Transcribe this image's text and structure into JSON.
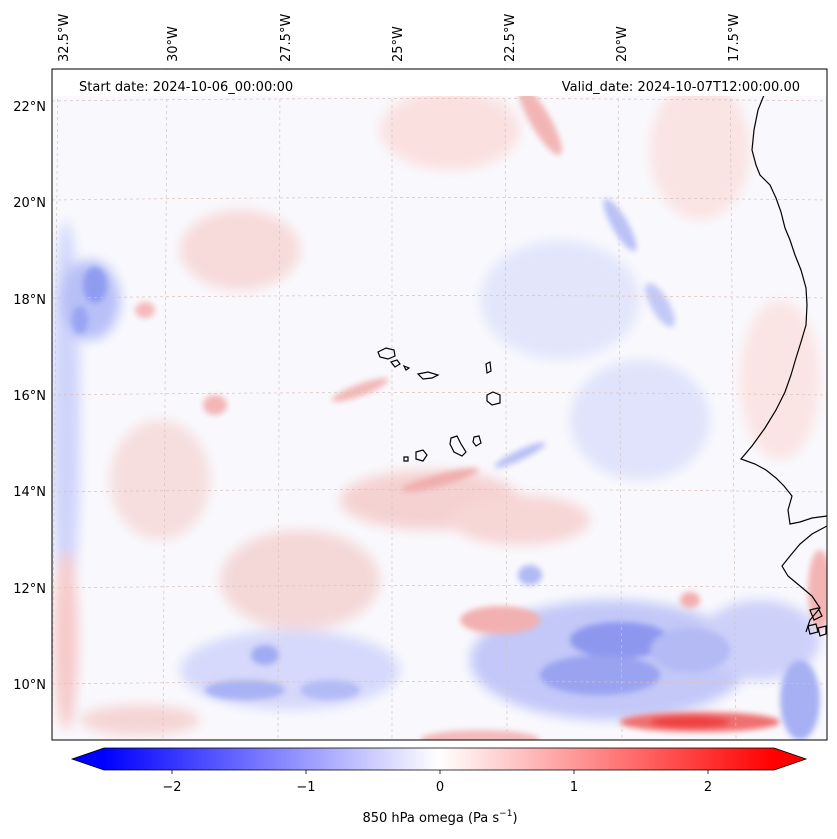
{
  "header": {
    "start_label": "Start date: 2024-10-06_00:00:00",
    "valid_label": "Valid_date: 2024-10-07T12:00:00.00"
  },
  "map": {
    "longitude_labels": [
      "32.5°W",
      "30°W",
      "27.5°W",
      "25°W",
      "22.5°W",
      "20°W",
      "17.5°W"
    ],
    "latitude_labels": [
      "22°N",
      "20°N",
      "18°N",
      "16°N",
      "14°N",
      "12°N",
      "10°N"
    ],
    "field": "850 hPa omega",
    "grid": true,
    "colormap": "bwr",
    "features": [
      "Cape Verde islands",
      "West African coastline"
    ]
  },
  "colorbar": {
    "tick_labels": [
      "−2",
      "−1",
      "0",
      "1",
      "2"
    ],
    "label_main": "850 hPa omega (Pa s",
    "label_sup": "−1",
    "label_close": ")",
    "colors": {
      "min": "#0000ff",
      "mid": "#ffffff",
      "max": "#ff0000"
    },
    "range": [
      -2.6,
      2.6
    ],
    "extend": "both"
  }
}
